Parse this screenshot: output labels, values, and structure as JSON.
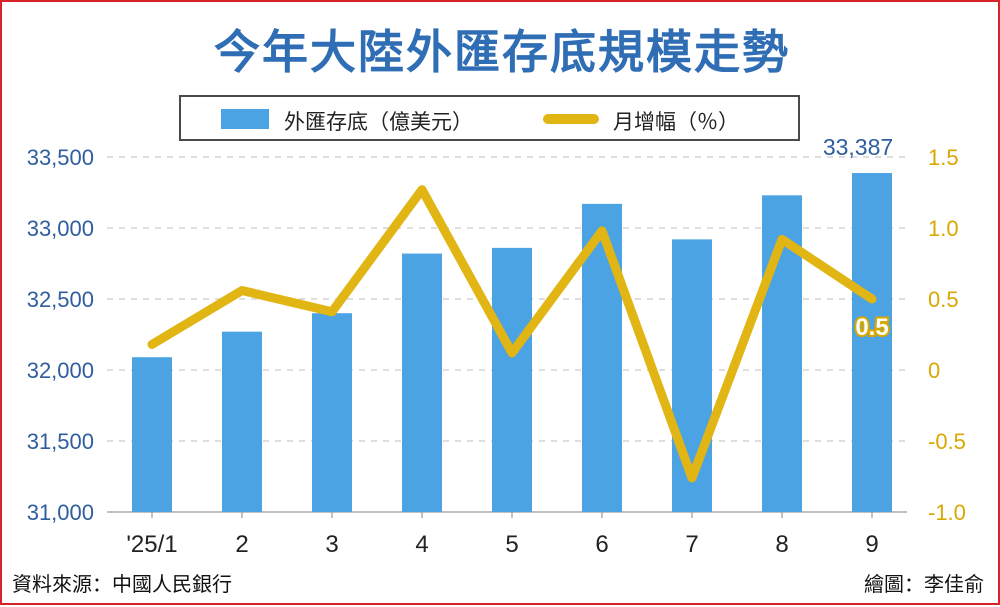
{
  "title": "今年大陸外匯存底規模走勢",
  "legend": {
    "bar_label": "外匯存底（億美元）",
    "line_label": "月增幅（％）"
  },
  "footer": {
    "source": "資料來源：中國人民銀行",
    "credit": "繪圖：李佳俞"
  },
  "chart_data": {
    "type": "bar",
    "categories": [
      "'25/1",
      "2",
      "3",
      "4",
      "5",
      "6",
      "7",
      "8",
      "9"
    ],
    "series": [
      {
        "name": "外匯存底（億美元）",
        "type": "bar",
        "axis": "left",
        "color": "#4ba3e3",
        "values": [
          32090,
          32270,
          32400,
          32820,
          32860,
          33170,
          32920,
          33230,
          33387
        ]
      },
      {
        "name": "月增幅（％）",
        "type": "line",
        "axis": "right",
        "color": "#e1b513",
        "values": [
          0.18,
          0.56,
          0.41,
          1.27,
          0.12,
          0.98,
          -0.76,
          0.92,
          0.5
        ]
      }
    ],
    "y_left": {
      "ylim": [
        31000,
        33500
      ],
      "ticks": [
        "31,000",
        "31,500",
        "32,000",
        "32,500",
        "33,000",
        "33,500"
      ]
    },
    "y_right": {
      "ylim": [
        -1.0,
        1.5
      ],
      "ticks": [
        "-1.0",
        "-0.5",
        "0",
        "0.5",
        "1.0",
        "1.5"
      ]
    },
    "annotations": {
      "last_bar_label": "33,387",
      "last_line_label": "0.5"
    },
    "grid": true,
    "legend_position": "top"
  }
}
